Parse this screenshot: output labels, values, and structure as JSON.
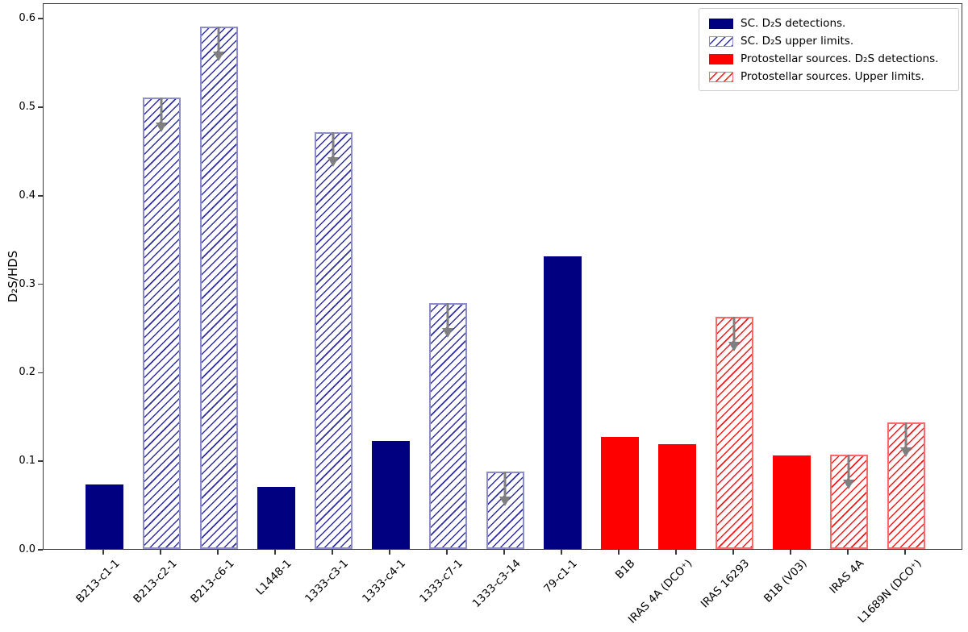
{
  "chart_data": {
    "type": "bar",
    "title": "",
    "xlabel": "",
    "ylabel": "D₂S/HDS",
    "ylim": [
      0.0,
      0.617
    ],
    "grid": false,
    "legend_position": "upper right",
    "ytick_labels": [
      "0.0",
      "0.1",
      "0.2",
      "0.3",
      "0.4",
      "0.5",
      "0.6"
    ],
    "yticks": [
      0.0,
      0.1,
      0.2,
      0.3,
      0.4,
      0.5,
      0.6
    ],
    "categories": [
      "B213-c1-1",
      "B213-c2-1",
      "B213-c6-1",
      "L1448-1",
      "1333-c3-1",
      "1333-c4-1",
      "1333-c7-1",
      "1333-c3-14",
      "79-c1-1",
      "B1B",
      "IRAS 4A (DCO⁺)",
      "IRAS 16293",
      "B1B (V03)",
      "IRAS 4A",
      "L1689N (DCO⁺)"
    ],
    "series": [
      {
        "name": "SC. D₂S detections.",
        "style": "sc-detection",
        "color": "#000080",
        "hatched": false
      },
      {
        "name": "SC. D₂S upper limits.",
        "style": "sc-upper",
        "color": "#000080",
        "hatched": true
      },
      {
        "name": "Protostellar sources. D₂S detections.",
        "style": "proto-detection",
        "color": "#ff0000",
        "hatched": false
      },
      {
        "name": "Protostellar sources. Upper limits.",
        "style": "proto-upper",
        "color": "#ff0000",
        "hatched": true
      }
    ],
    "bars": [
      {
        "category": "B213-c1-1",
        "value": 0.073,
        "series": 0,
        "upper_limit": false
      },
      {
        "category": "B213-c2-1",
        "value": 0.51,
        "series": 1,
        "upper_limit": true
      },
      {
        "category": "B213-c6-1",
        "value": 0.59,
        "series": 1,
        "upper_limit": true
      },
      {
        "category": "L1448-1",
        "value": 0.07,
        "series": 0,
        "upper_limit": false
      },
      {
        "category": "1333-c3-1",
        "value": 0.471,
        "series": 1,
        "upper_limit": true
      },
      {
        "category": "1333-c4-1",
        "value": 0.122,
        "series": 0,
        "upper_limit": false
      },
      {
        "category": "1333-c7-1",
        "value": 0.278,
        "series": 1,
        "upper_limit": true
      },
      {
        "category": "1333-c3-14",
        "value": 0.087,
        "series": 1,
        "upper_limit": true
      },
      {
        "category": "79-c1-1",
        "value": 0.331,
        "series": 0,
        "upper_limit": false
      },
      {
        "category": "B1B",
        "value": 0.127,
        "series": 2,
        "upper_limit": false
      },
      {
        "category": "IRAS 4A (DCO⁺)",
        "value": 0.118,
        "series": 2,
        "upper_limit": false
      },
      {
        "category": "IRAS 16293",
        "value": 0.262,
        "series": 3,
        "upper_limit": true
      },
      {
        "category": "B1B (V03)",
        "value": 0.106,
        "series": 2,
        "upper_limit": false
      },
      {
        "category": "IRAS 4A",
        "value": 0.107,
        "series": 3,
        "upper_limit": true
      },
      {
        "category": "L1689N (DCO⁺)",
        "value": 0.143,
        "series": 3,
        "upper_limit": true
      }
    ],
    "colors": {
      "sc_detection": "#000080",
      "protostellar_detection": "#ff0000",
      "upper_limit_arrow": "#7f7f7f",
      "axis": "#3a3a3a"
    }
  }
}
